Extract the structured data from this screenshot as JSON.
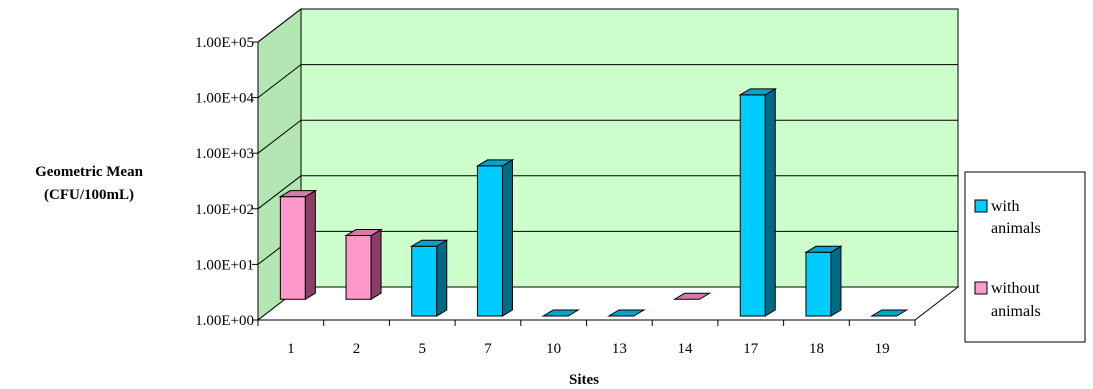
{
  "chart_data": {
    "type": "bar",
    "title": "",
    "ylabel_lines": [
      "Geometric Mean",
      "(CFU/100mL)"
    ],
    "xlabel": "Sites",
    "categories": [
      "1",
      "2",
      "5",
      "7",
      "10",
      "13",
      "14",
      "17",
      "18",
      "19"
    ],
    "y_scale": "log",
    "ylim": [
      1,
      100000
    ],
    "yticks": [
      1,
      10,
      100,
      1000,
      10000,
      100000
    ],
    "ytick_labels": [
      "1.00E+00",
      "1.00E+01",
      "1.00E+02",
      "1.00E+03",
      "1.00E+04",
      "1.00E+05"
    ],
    "grid": true,
    "legend_position": "right",
    "bars": [
      {
        "category": "1",
        "series": "without animals",
        "value": 140
      },
      {
        "category": "2",
        "series": "without animals",
        "value": 28
      },
      {
        "category": "5",
        "series": "with animals",
        "value": 18
      },
      {
        "category": "7",
        "series": "with animals",
        "value": 500
      },
      {
        "category": "10",
        "series": "with animals",
        "value": 1
      },
      {
        "category": "13",
        "series": "with animals",
        "value": 1
      },
      {
        "category": "14",
        "series": "without animals",
        "value": 1
      },
      {
        "category": "17",
        "series": "with animals",
        "value": 9500
      },
      {
        "category": "18",
        "series": "with animals",
        "value": 14
      },
      {
        "category": "19",
        "series": "with animals",
        "value": 1
      }
    ],
    "series": [
      {
        "name": "with animals",
        "label_lines": [
          "with",
          "animals"
        ],
        "front": "#00CCFF",
        "side": "#006A85",
        "top": "#00A3CC"
      },
      {
        "name": "without animals",
        "label_lines": [
          "without",
          "animals"
        ],
        "front": "#FF99CC",
        "side": "#8A3E66",
        "top": "#D67AA8"
      }
    ],
    "colors": {
      "back_wall": "#CCFFCC",
      "side_wall": "#B3E6B3",
      "floor": "#FFFFFF",
      "gridline": "#000000"
    }
  }
}
